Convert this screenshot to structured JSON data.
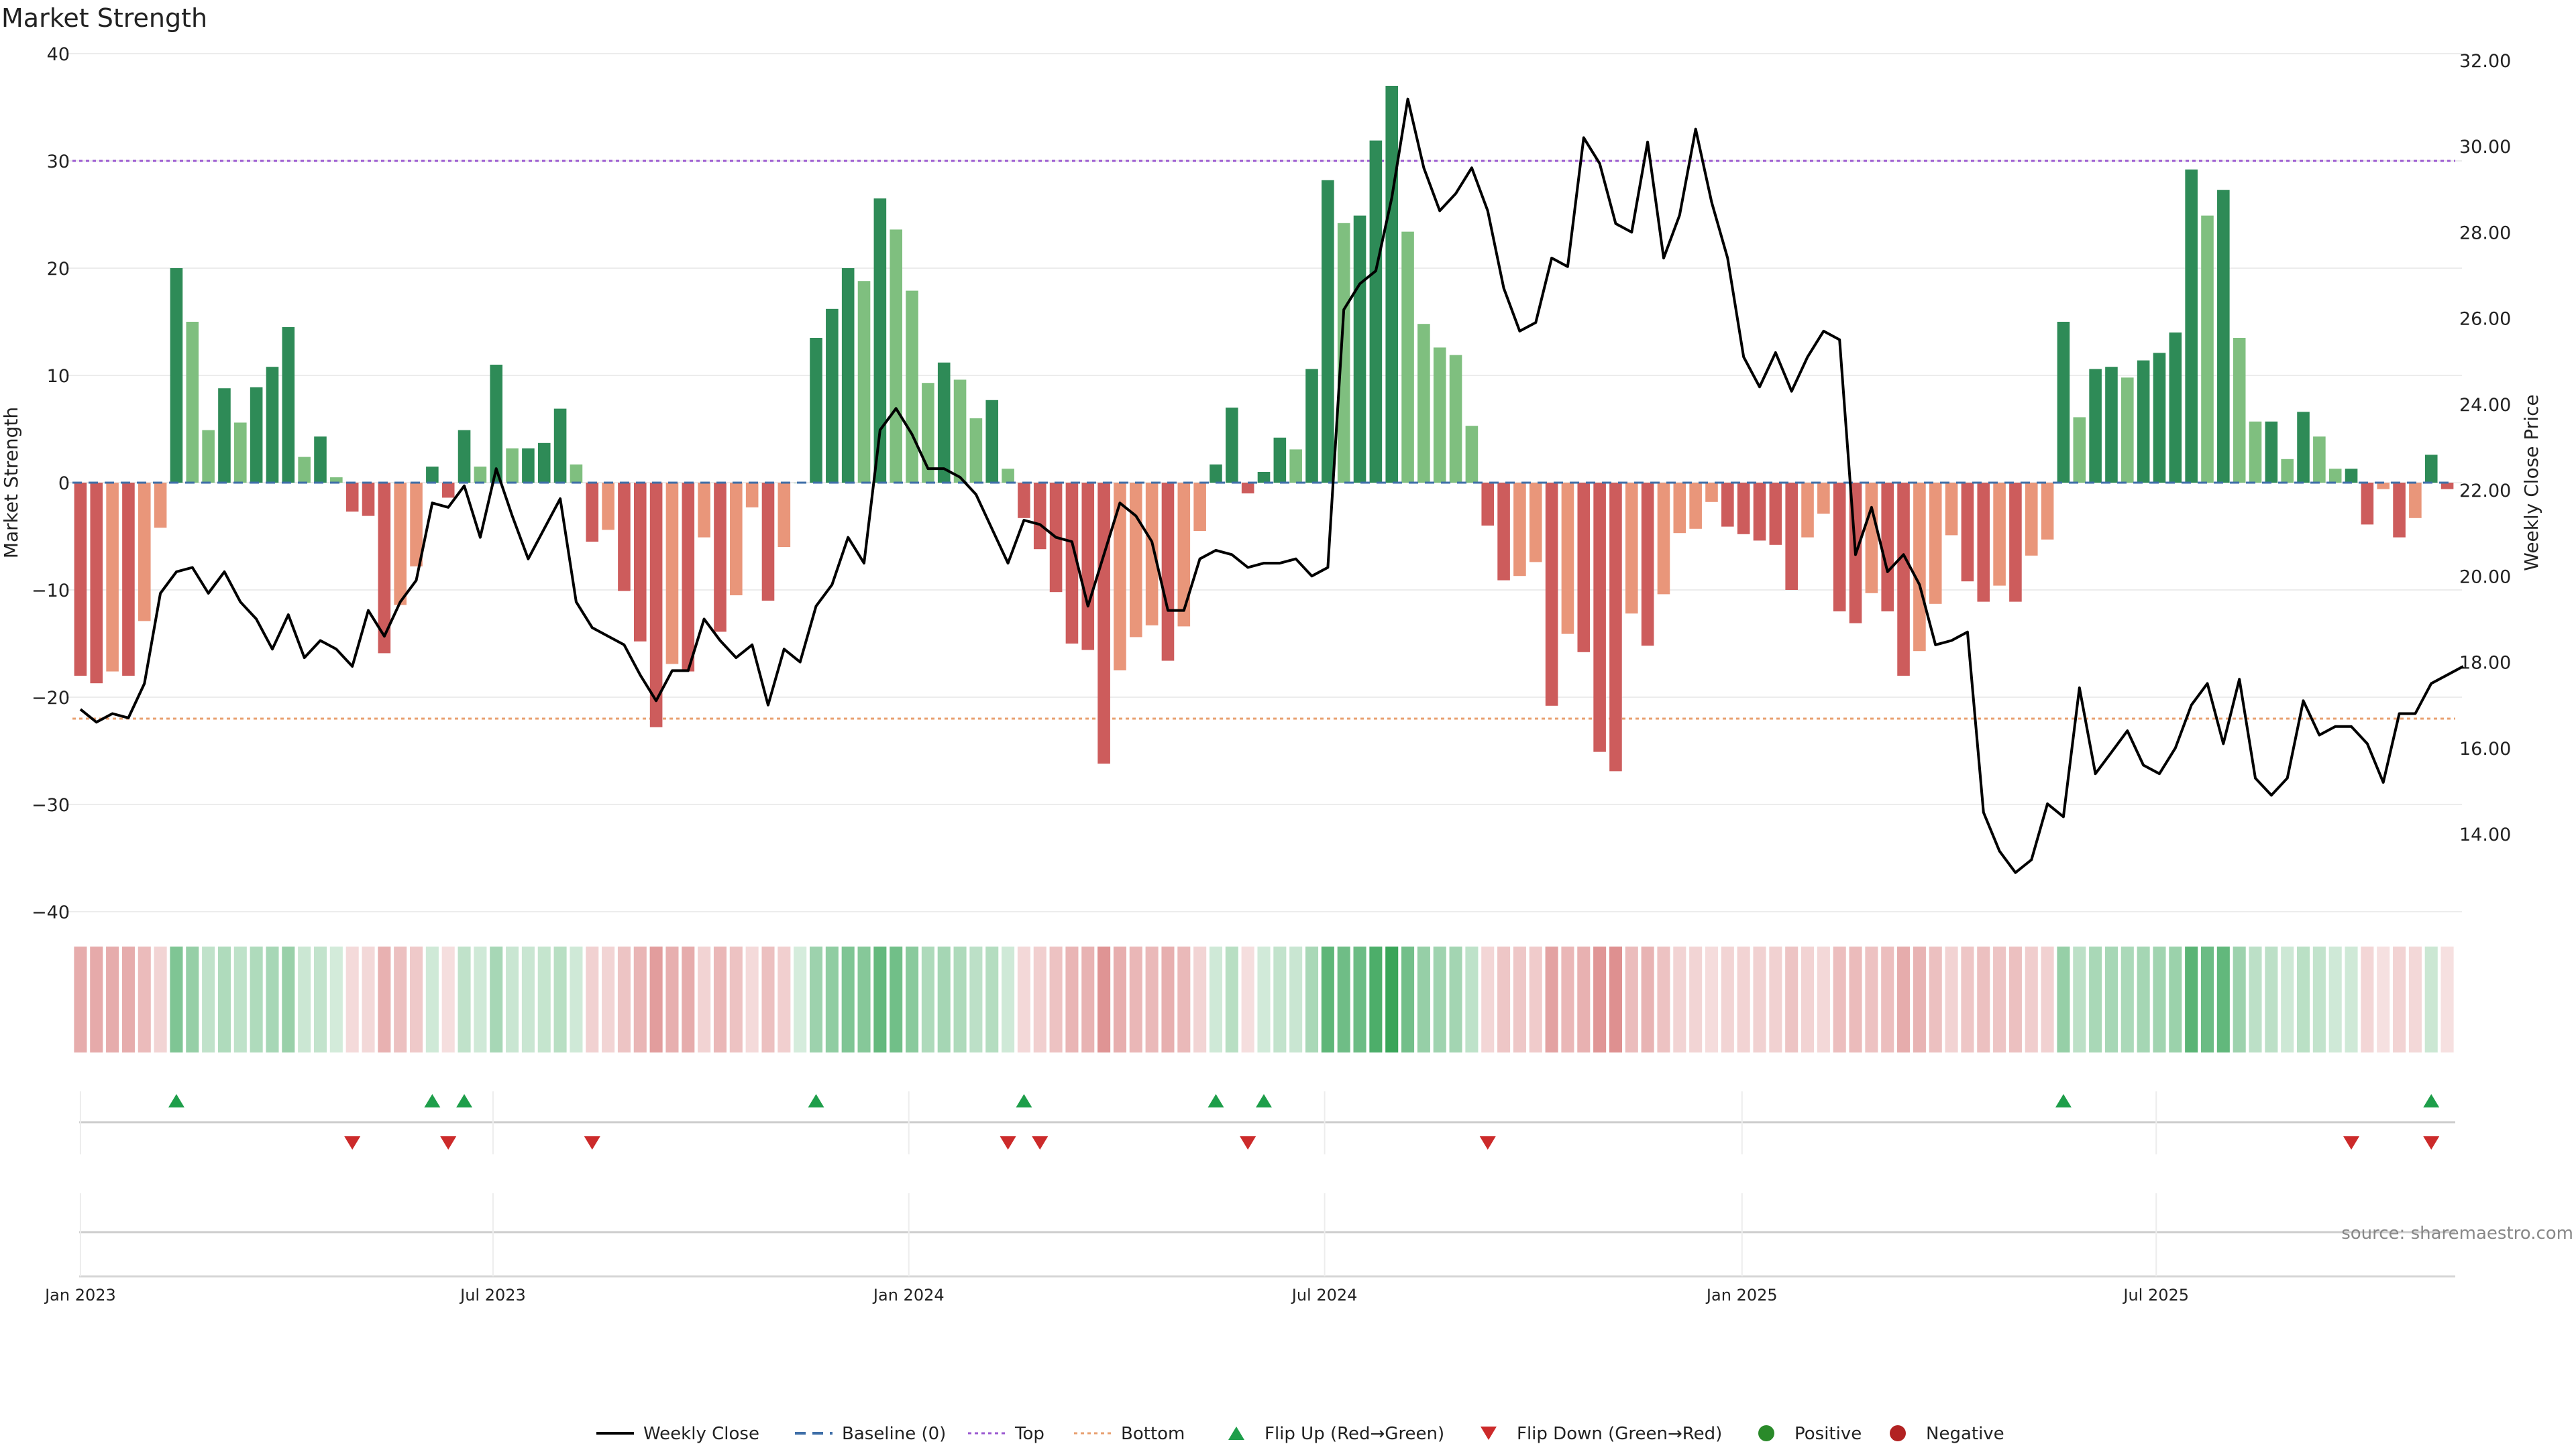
{
  "chart_data": {
    "type": "bar",
    "title": "Market Strength",
    "ylabel_left": "Market Strength",
    "ylabel_right": "Weekly Close Price",
    "source": "source: sharemaestro.com",
    "ylim_left": [
      -40,
      40
    ],
    "ylim_right": [
      12,
      32
    ],
    "left_ticks": [
      "40",
      "30",
      "20",
      "10",
      "0",
      "−10",
      "−20",
      "−30",
      "−40"
    ],
    "right_ticks": [
      "32.00",
      "30.00",
      "28.00",
      "26.00",
      "24.00",
      "22.00",
      "20.00",
      "18.00",
      "16.00",
      "14.00"
    ],
    "x_ticks": [
      "Jan 2023",
      "Jul 2023",
      "Jan 2024",
      "Jul 2024",
      "Jan 2025",
      "Jul 2025"
    ],
    "top_threshold": 30,
    "bottom_threshold": -22,
    "grid": true,
    "legend_position": "bottom-center",
    "legend": [
      {
        "label": "Weekly Close",
        "kind": "line",
        "color": "#000000"
      },
      {
        "label": "Baseline (0)",
        "kind": "dash",
        "color": "#3f6fa8"
      },
      {
        "label": "Top",
        "kind": "dot",
        "color": "#9b59d0"
      },
      {
        "label": "Bottom",
        "kind": "dot",
        "color": "#e8a070"
      },
      {
        "label": "Flip Up (Red→Green)",
        "kind": "triangle-up",
        "color": "#1e9e4a"
      },
      {
        "label": "Flip Down (Green→Red)",
        "kind": "triangle-down",
        "color": "#cc2a2a"
      },
      {
        "label": "Positive",
        "kind": "circle",
        "color": "#2a8a2a"
      },
      {
        "label": "Negative",
        "kind": "circle",
        "color": "#b22222"
      }
    ],
    "colors": {
      "pos_strong": "#2e8b57",
      "pos_light": "#7fbf7f",
      "neg_strong": "#cd5c5c",
      "neg_light": "#e9967a",
      "line": "#000000"
    },
    "strength": [
      -18,
      -18.7,
      -17.6,
      -18,
      -12.9,
      -4.2,
      20,
      15,
      4.9,
      8.8,
      5.6,
      8.9,
      10.8,
      14.5,
      2.4,
      4.3,
      0.5,
      -2.7,
      -3.1,
      -15.9,
      -11.4,
      -7.8,
      1.5,
      -1.4,
      4.9,
      1.5,
      11,
      3.2,
      3.2,
      3.7,
      6.9,
      1.7,
      -5.5,
      -4.4,
      -10.1,
      -14.8,
      -22.8,
      -16.9,
      -17.6,
      -5.1,
      -13.9,
      -10.5,
      -2.3,
      -11,
      -6,
      0,
      13.5,
      16.2,
      20,
      18.8,
      26.5,
      23.6,
      17.9,
      9.3,
      11.2,
      9.6,
      6,
      7.7,
      1.3,
      -3.3,
      -6.2,
      -10.2,
      -15,
      -15.6,
      -26.2,
      -17.5,
      -14.4,
      -13.3,
      -16.6,
      -13.4,
      -4.5,
      1.7,
      7,
      -1,
      1,
      4.2,
      3.1,
      10.6,
      28.2,
      24.2,
      24.9,
      31.9,
      37,
      23.4,
      14.8,
      12.6,
      11.9,
      5.3,
      -4,
      -9.1,
      -8.7,
      -7.4,
      -20.8,
      -14.1,
      -15.8,
      -25.1,
      -26.9,
      -12.2,
      -15.2,
      -10.4,
      -4.7,
      -4.3,
      -1.8,
      -4.1,
      -4.8,
      -5.4,
      -5.8,
      -10,
      -5.1,
      -2.9,
      -12,
      -13.1,
      -10.3,
      -12,
      -18,
      -15.7,
      -11.3,
      -4.9,
      -9.2,
      -11.1,
      -9.6,
      -11.1,
      -6.8,
      -5.3,
      15,
      6.1,
      10.6,
      10.8,
      9.8,
      11.4,
      12.1,
      14,
      29.2,
      24.9,
      27.3,
      13.5,
      5.7,
      5.7,
      2.2,
      6.6,
      4.3,
      1.3,
      1.3,
      -3.9,
      -0.6,
      -5.1,
      -3.3,
      2.6,
      -0.6
    ],
    "weekly_close": [
      16.9,
      16.6,
      16.8,
      16.7,
      17.5,
      19.6,
      20.1,
      20.2,
      19.6,
      20.1,
      19.4,
      19,
      18.3,
      19.1,
      18.1,
      18.5,
      18.3,
      17.9,
      19.2,
      18.6,
      19.4,
      19.9,
      21.7,
      21.6,
      22.1,
      20.9,
      22.5,
      21.4,
      20.4,
      21.1,
      21.8,
      19.4,
      18.8,
      18.6,
      18.4,
      17.7,
      17.1,
      17.8,
      17.8,
      19,
      18.5,
      18.1,
      18.4,
      17,
      18.3,
      18,
      19.3,
      19.8,
      20.9,
      20.3,
      23.4,
      23.9,
      23.3,
      22.5,
      22.5,
      22.3,
      21.9,
      21.1,
      20.3,
      21.3,
      21.2,
      20.9,
      20.8,
      19.3,
      20.5,
      21.7,
      21.4,
      20.8,
      19.2,
      19.2,
      20.4,
      20.6,
      20.5,
      20.2,
      20.3,
      20.3,
      20.4,
      20,
      20.2,
      26.2,
      26.8,
      27.1,
      28.8,
      31.1,
      29.5,
      28.5,
      28.9,
      29.5,
      28.5,
      26.7,
      25.7,
      25.9,
      27.4,
      27.2,
      30.2,
      29.6,
      28.2,
      28,
      30.1,
      27.4,
      28.4,
      30.4,
      28.7,
      27.4,
      25.1,
      24.4,
      25.2,
      24.3,
      25.1,
      25.7,
      25.5,
      20.5,
      21.6,
      20.1,
      20.5,
      19.8,
      18.4,
      18.5,
      18.7,
      14.5,
      13.6,
      13.1,
      13.4,
      14.7,
      14.4,
      17.4,
      15.4,
      15.9,
      16.4,
      15.6,
      15.4,
      16,
      17,
      17.5,
      16.1,
      17.6,
      15.3,
      14.9,
      15.3,
      17.1,
      16.3,
      16.5,
      16.5,
      16.1,
      15.2,
      16.8,
      16.8,
      17.5,
      17.7,
      17.9
    ],
    "flip_up_index": [
      6,
      22,
      24,
      46,
      59,
      71,
      74,
      124,
      147
    ],
    "flip_down_index": [
      17,
      23,
      32,
      58,
      60,
      73,
      88,
      142,
      147
    ]
  }
}
